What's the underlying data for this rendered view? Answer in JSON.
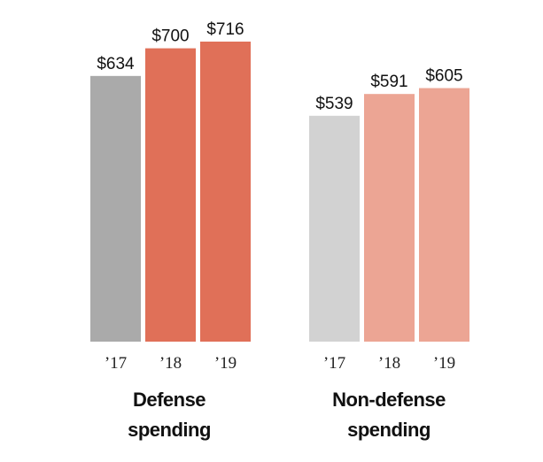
{
  "chart_data": {
    "type": "bar",
    "title": "",
    "ylim": [
      0,
      716
    ],
    "groups": [
      {
        "name_lines": [
          "Defense",
          "spending"
        ],
        "categories": [
          "’17",
          "’18",
          "’19"
        ],
        "values": [
          634,
          700,
          716
        ],
        "labels": [
          "$634",
          "$700",
          "$716"
        ],
        "colors": [
          "#aaaaaa",
          "#e07058",
          "#e07058"
        ]
      },
      {
        "name_lines": [
          "Non-defense",
          "spending"
        ],
        "categories": [
          "’17",
          "’18",
          "’19"
        ],
        "values": [
          539,
          591,
          605
        ],
        "labels": [
          "$539",
          "$591",
          "$605"
        ],
        "colors": [
          "#d2d2d2",
          "#eca594",
          "#eca594"
        ]
      }
    ]
  }
}
